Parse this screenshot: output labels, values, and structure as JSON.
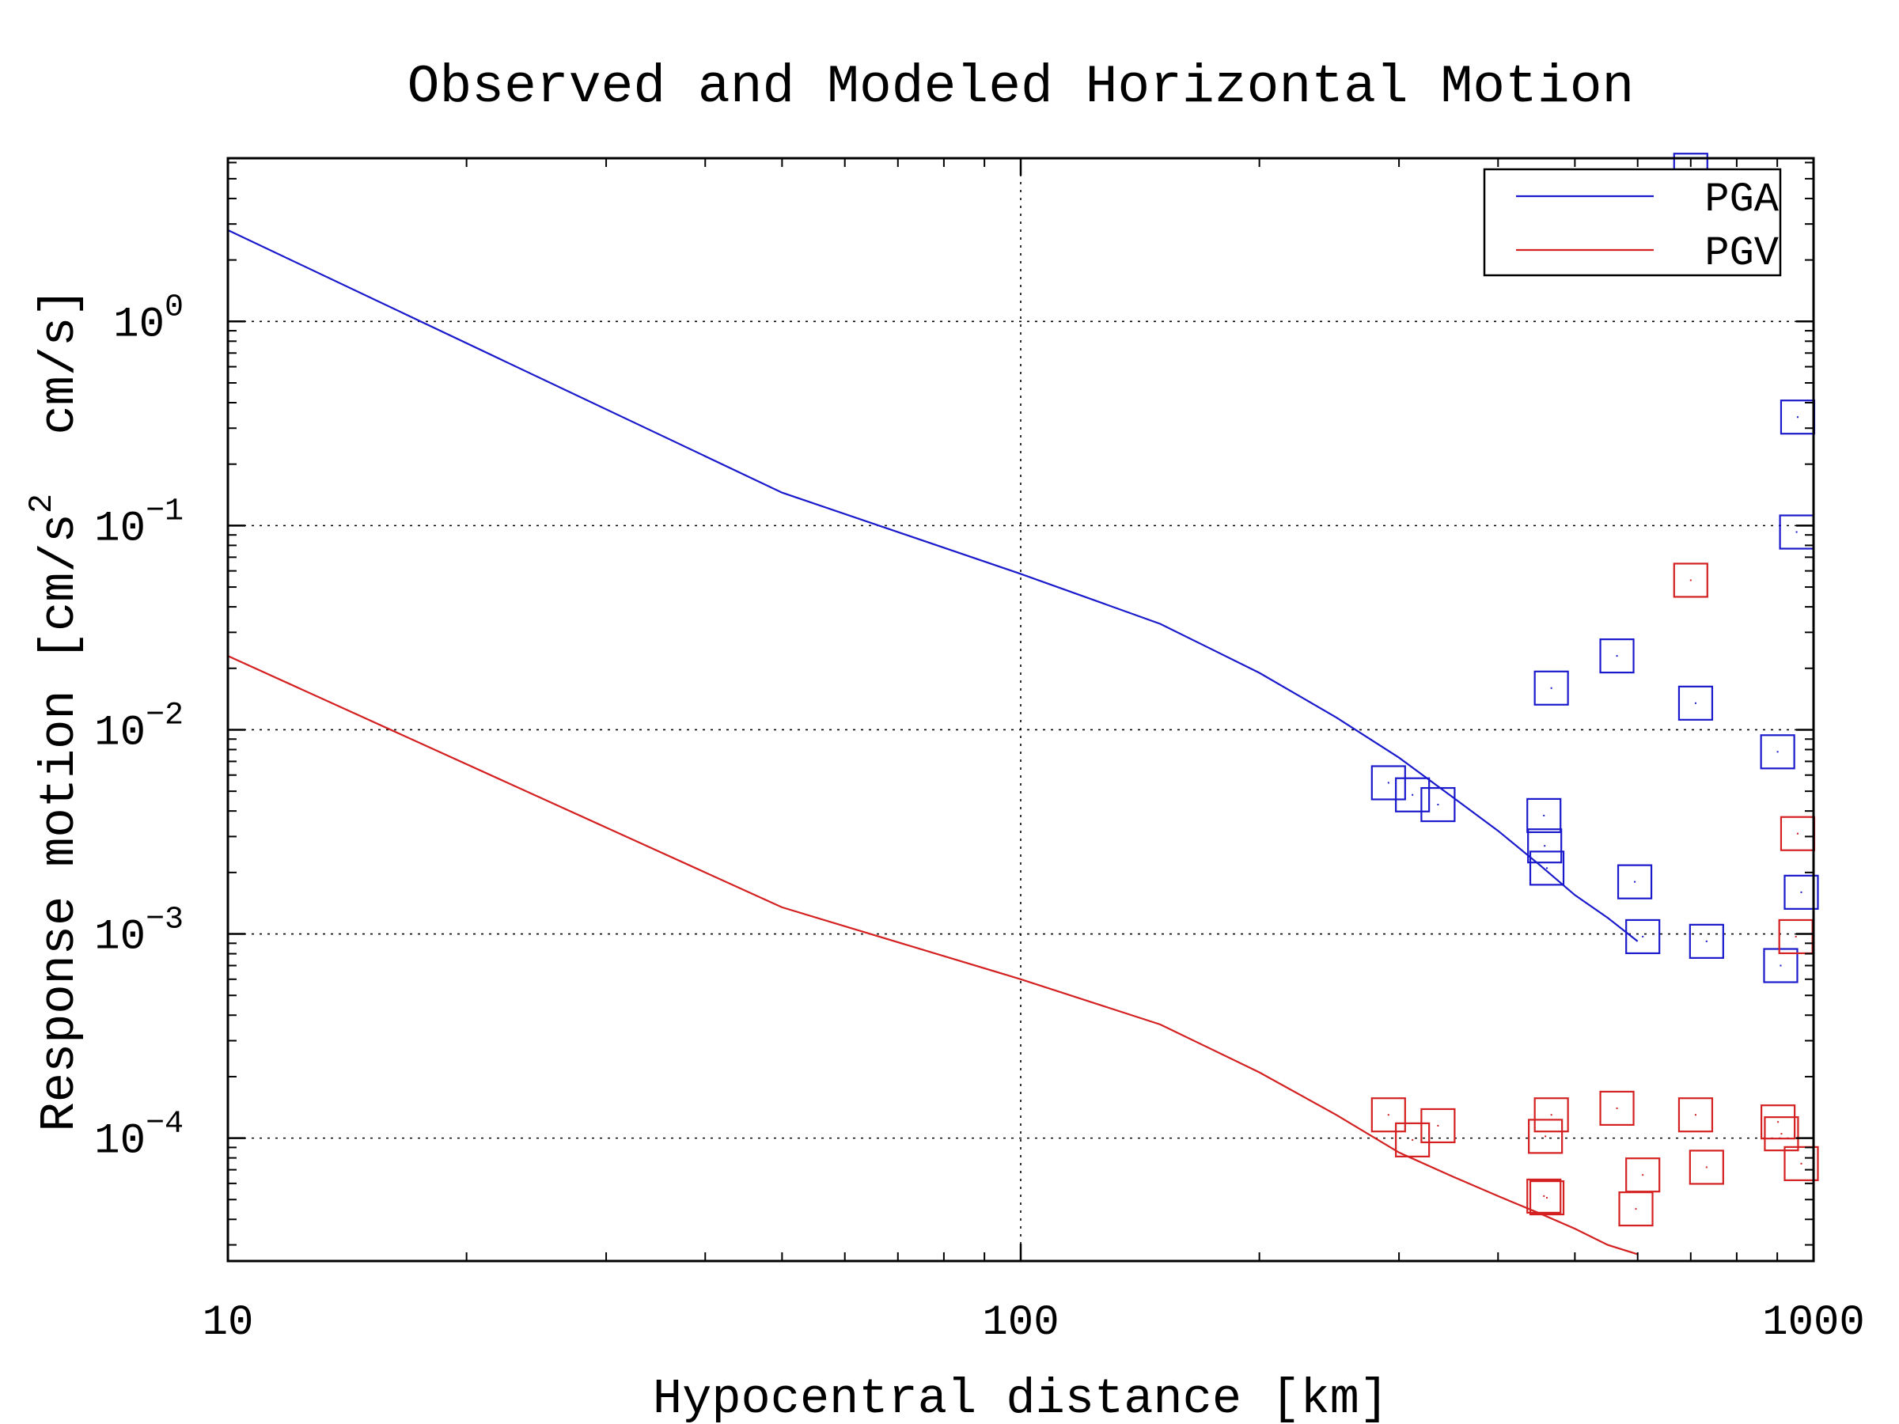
{
  "chart_data": {
    "type": "scatter",
    "title": "Observed and Modeled Horizontal Motion",
    "xlabel": "Hypocentral distance [km]",
    "ylabel": "Response motion",
    "ylabel_units": "[cm/s  cm/s]",
    "ylabel_units_parts": {
      "open": "[cm/s",
      "exponent": "2",
      "close": "  cm/s]"
    },
    "x_scale": "log",
    "y_scale": "log",
    "xlim": [
      10,
      1000
    ],
    "ylim": [
      2.5e-05,
      6.3
    ],
    "grid": true,
    "legend_position": "top-right",
    "x_ticks": [
      {
        "value": 10,
        "label": "10"
      },
      {
        "value": 100,
        "label": "100"
      },
      {
        "value": 1000,
        "label": "1000"
      }
    ],
    "y_ticks": [
      {
        "value": 1,
        "base": "10",
        "exp": "0"
      },
      {
        "value": 0.1,
        "base": "10",
        "exp": "−1"
      },
      {
        "value": 0.01,
        "base": "10",
        "exp": "−2"
      },
      {
        "value": 0.001,
        "base": "10",
        "exp": "−3"
      },
      {
        "value": 0.0001,
        "base": "10",
        "exp": "−4"
      }
    ],
    "series": [
      {
        "name": "PGA",
        "color": "#1a1acc",
        "model_line": [
          [
            10,
            2.8
          ],
          [
            50,
            0.145
          ],
          [
            100,
            0.058
          ],
          [
            150,
            0.033
          ],
          [
            200,
            0.019
          ],
          [
            250,
            0.0115
          ],
          [
            300,
            0.0073
          ],
          [
            350,
            0.0047
          ],
          [
            400,
            0.0032
          ],
          [
            450,
            0.0022
          ],
          [
            500,
            0.00155
          ],
          [
            550,
            0.0012
          ],
          [
            600,
            0.00092
          ]
        ],
        "observed": [
          [
            291,
            0.0055
          ],
          [
            312,
            0.0048
          ],
          [
            336,
            0.0043
          ],
          [
            467,
            0.016
          ],
          [
            457,
            0.0038
          ],
          [
            458,
            0.0027
          ],
          [
            461,
            0.0021
          ],
          [
            565,
            0.023
          ],
          [
            595,
            0.0018
          ],
          [
            609,
            0.00097
          ],
          [
            710,
            0.0135
          ],
          [
            733,
            0.00092
          ],
          [
            700,
            5.5
          ],
          [
            901,
            0.0078
          ],
          [
            909,
            0.0007
          ],
          [
            955,
            0.34
          ],
          [
            952,
            0.093
          ],
          [
            965,
            0.0016
          ]
        ]
      },
      {
        "name": "PGV",
        "color": "#d42020",
        "model_line": [
          [
            10,
            0.023
          ],
          [
            50,
            0.00135
          ],
          [
            100,
            0.0006
          ],
          [
            150,
            0.00036
          ],
          [
            200,
            0.00021
          ],
          [
            250,
            0.00013
          ],
          [
            300,
            8.5e-05
          ],
          [
            350,
            6.5e-05
          ],
          [
            400,
            5.2e-05
          ],
          [
            450,
            4.3e-05
          ],
          [
            500,
            3.6e-05
          ],
          [
            550,
            3e-05
          ],
          [
            600,
            2.7e-05
          ]
        ],
        "observed": [
          [
            291,
            0.00013
          ],
          [
            312,
            9.8e-05
          ],
          [
            336,
            0.000115
          ],
          [
            467,
            0.00013
          ],
          [
            459,
            0.000102
          ],
          [
            457,
            5.2e-05
          ],
          [
            461,
            5.1e-05
          ],
          [
            565,
            0.00014
          ],
          [
            609,
            6.6e-05
          ],
          [
            597,
            4.5e-05
          ],
          [
            700,
            0.054
          ],
          [
            710,
            0.00013
          ],
          [
            733,
            7.2e-05
          ],
          [
            902,
            0.00012
          ],
          [
            911,
            0.000105
          ],
          [
            955,
            0.0031
          ],
          [
            950,
            0.00097
          ],
          [
            965,
            7.5e-05
          ]
        ]
      }
    ]
  }
}
